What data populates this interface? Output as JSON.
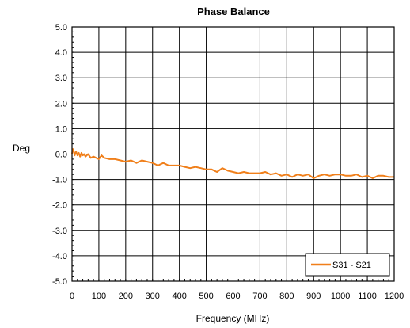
{
  "chart_data": {
    "type": "line",
    "title": "Phase Balance",
    "xlabel": "Frequency (MHz)",
    "ylabel": "Deg",
    "xlim": [
      0,
      1200
    ],
    "ylim": [
      -5.0,
      5.0
    ],
    "xticks": [
      0,
      100,
      200,
      300,
      400,
      500,
      600,
      700,
      800,
      900,
      1000,
      1100,
      1200
    ],
    "yticks": [
      5.0,
      4.0,
      3.0,
      2.0,
      1.0,
      0.0,
      -1.0,
      -2.0,
      -3.0,
      -4.0,
      -5.0
    ],
    "ytick_labels": [
      "5.0",
      "4.0",
      "3.0",
      "2.0",
      "1.0",
      "0.0",
      "-1.0",
      "-2.0",
      "-3.0",
      "-4.0",
      "-5.0"
    ],
    "grid": true,
    "legend_position": "bottom-right",
    "series": [
      {
        "name": "S31 - S21",
        "color": "#f07f1a",
        "x": [
          0,
          3,
          6,
          10,
          15,
          20,
          25,
          30,
          35,
          40,
          45,
          50,
          60,
          70,
          80,
          90,
          100,
          110,
          120,
          140,
          160,
          180,
          200,
          220,
          240,
          260,
          280,
          300,
          320,
          340,
          360,
          380,
          400,
          420,
          440,
          460,
          480,
          500,
          520,
          540,
          560,
          580,
          600,
          620,
          640,
          660,
          680,
          700,
          720,
          740,
          760,
          780,
          800,
          820,
          840,
          860,
          880,
          900,
          920,
          940,
          960,
          980,
          1000,
          1020,
          1040,
          1060,
          1080,
          1100,
          1120,
          1140,
          1160,
          1180,
          1200
        ],
        "y": [
          0.0,
          0.2,
          0.15,
          -0.05,
          0.1,
          -0.05,
          0.05,
          -0.1,
          0.05,
          -0.05,
          0.0,
          -0.1,
          0.0,
          -0.15,
          -0.1,
          -0.15,
          -0.2,
          -0.05,
          -0.15,
          -0.2,
          -0.2,
          -0.25,
          -0.3,
          -0.25,
          -0.35,
          -0.25,
          -0.3,
          -0.35,
          -0.45,
          -0.35,
          -0.45,
          -0.45,
          -0.45,
          -0.5,
          -0.55,
          -0.5,
          -0.55,
          -0.6,
          -0.6,
          -0.7,
          -0.55,
          -0.65,
          -0.7,
          -0.75,
          -0.7,
          -0.75,
          -0.75,
          -0.75,
          -0.7,
          -0.8,
          -0.75,
          -0.85,
          -0.8,
          -0.9,
          -0.8,
          -0.85,
          -0.8,
          -0.95,
          -0.85,
          -0.8,
          -0.85,
          -0.8,
          -0.8,
          -0.85,
          -0.85,
          -0.8,
          -0.9,
          -0.85,
          -0.95,
          -0.85,
          -0.85,
          -0.9,
          -0.9
        ]
      }
    ]
  }
}
